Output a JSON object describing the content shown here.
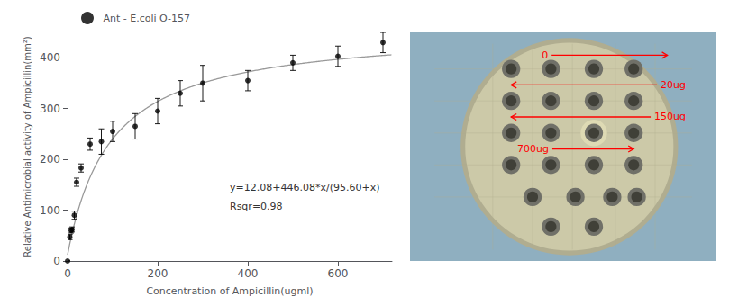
{
  "chart_data": {
    "type": "scatter",
    "x_label": "Concentration of Ampicillin(ugml)",
    "y_label": "Relative Antimicrobial activity of Ampicillin(mm²)",
    "x": [
      0,
      5,
      8,
      10,
      15,
      20,
      30,
      50,
      75,
      100,
      150,
      200,
      250,
      300,
      400,
      500,
      600,
      700
    ],
    "series": [
      {
        "name": "Ant - E.coli O-157",
        "type": "scatter",
        "color": "black",
        "marker": "circle",
        "values": [
          0,
          47,
          60,
          62,
          90,
          155,
          183,
          230,
          235,
          255,
          265,
          295,
          330,
          350,
          355,
          390,
          403,
          430
        ],
        "y_err": [
          0,
          5,
          5,
          5,
          8,
          8,
          8,
          12,
          25,
          20,
          25,
          25,
          25,
          35,
          20,
          15,
          20,
          20
        ]
      }
    ],
    "fit": {
      "a": 12.08,
      "b": 446.08,
      "c": 95.6,
      "color": "#999999",
      "line_style": "solid"
    },
    "annotations": [
      "y=12.08+446.08*x/(95.60+x)",
      "Rsqr=0.98",
      "0",
      "20ug",
      "150ug",
      "700ug"
    ],
    "xlim": [
      0,
      720
    ],
    "ylim": [
      0,
      450
    ],
    "xticks": [
      0,
      200,
      400,
      600
    ],
    "yticks": [
      0,
      100,
      200,
      300,
      400
    ],
    "grid": false,
    "legend": "upper left"
  }
}
